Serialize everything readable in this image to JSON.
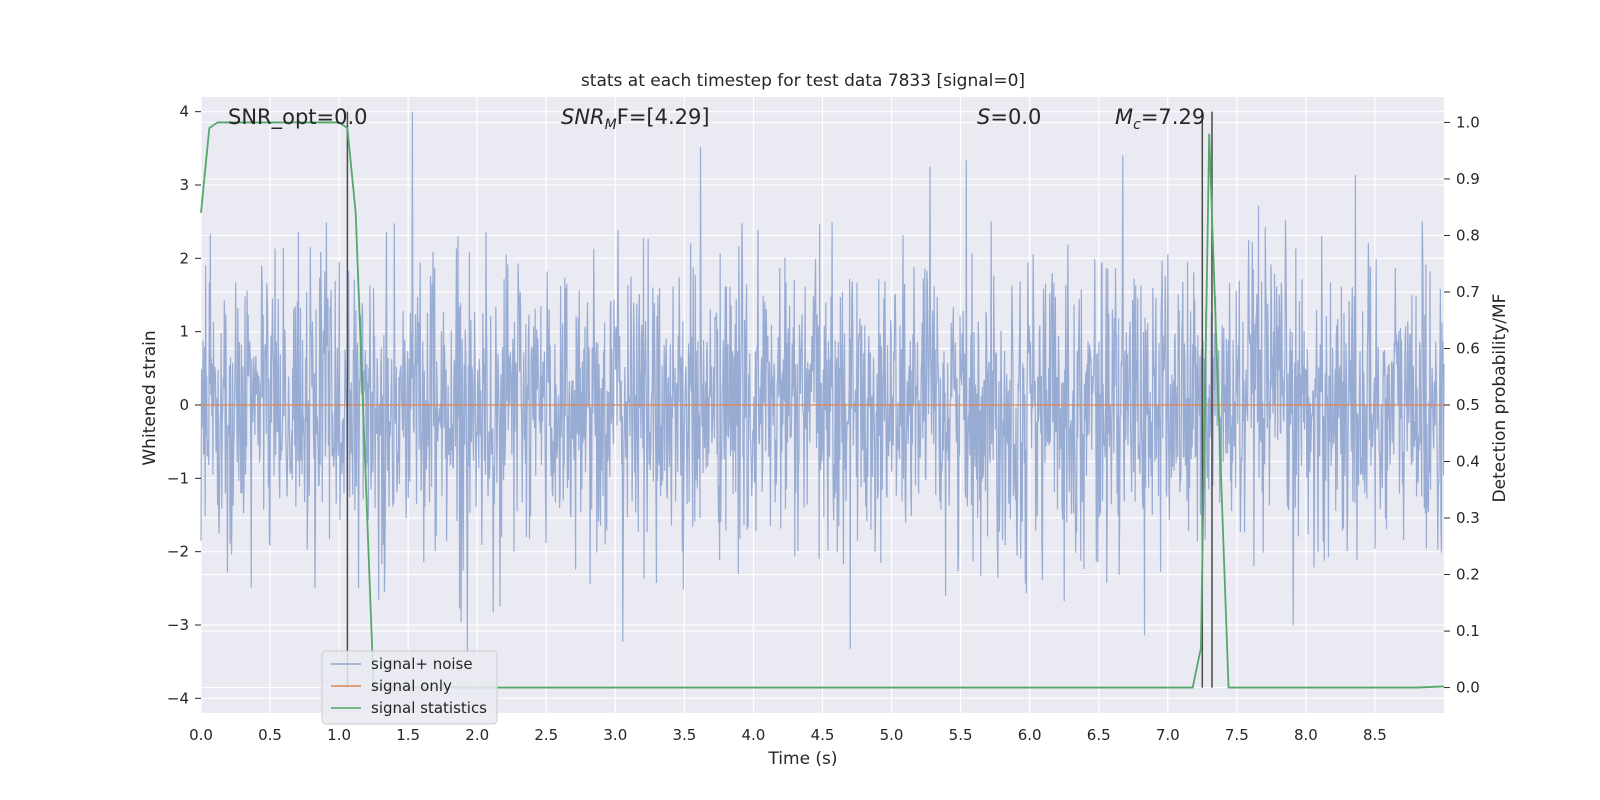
{
  "chart_data": {
    "type": "line",
    "title": "stats at each timestep for test data 7833 [signal=0]",
    "xlabel": "Time (s)",
    "ylabel": "Whitened strain",
    "y2label": "Detection probability/MF",
    "xlim": [
      0,
      9.0
    ],
    "ylim": [
      -4.2,
      4.2
    ],
    "y2lim": [
      -0.045,
      1.045
    ],
    "xticks": [
      "0.0",
      "0.5",
      "1.0",
      "1.5",
      "2.0",
      "2.5",
      "3.0",
      "3.5",
      "4.0",
      "4.5",
      "5.0",
      "5.5",
      "6.0",
      "6.5",
      "7.0",
      "7.5",
      "8.0",
      "8.5"
    ],
    "yticks": [
      "4",
      "3",
      "2",
      "1",
      "0",
      "−1",
      "−2",
      "−3",
      "−4"
    ],
    "y2ticks": [
      "1.0",
      "0.9",
      "0.8",
      "0.7",
      "0.6",
      "0.5",
      "0.4",
      "0.3",
      "0.2",
      "0.1",
      "0.0"
    ],
    "grid": true,
    "legend_position": "lower-left",
    "annotations": {
      "snr_opt": "SNR_opt=0.0",
      "snr_mf_base": "SNR",
      "snr_mf_sub": "M",
      "snr_mf_rest": "F=[4.29]",
      "s_var": "S",
      "s_rest": "=0.0",
      "mc_var": "M",
      "mc_sub": "c",
      "mc_rest": "=7.29"
    },
    "series": [
      {
        "name": "signal+ noise",
        "color": "#8fa4cf",
        "note_values": "dense whitened noise, roughly N(0,1) with extremes to ±4",
        "envelope": {
          "rms": 1.0,
          "max_peak": 4.0,
          "min_peak": -3.8
        }
      },
      {
        "name": "signal only",
        "color": "#dd8452",
        "x": [
          0,
          9.0
        ],
        "y": [
          0,
          0
        ]
      },
      {
        "name": "signal statistics",
        "color": "#55a868",
        "axis": "right",
        "x": [
          0,
          0.06,
          0.12,
          1.0,
          1.06,
          1.12,
          1.25,
          1.3,
          7.18,
          7.24,
          7.3,
          7.36,
          7.44,
          8.8,
          9.0
        ],
        "y": [
          0.84,
          0.99,
          1.0,
          1.0,
          0.99,
          0.84,
          0.0,
          0.0,
          0.0,
          0.07,
          0.98,
          0.55,
          0.0,
          0.0,
          0.002
        ]
      }
    ],
    "vlines": [
      1.06,
      7.25,
      7.32
    ]
  }
}
